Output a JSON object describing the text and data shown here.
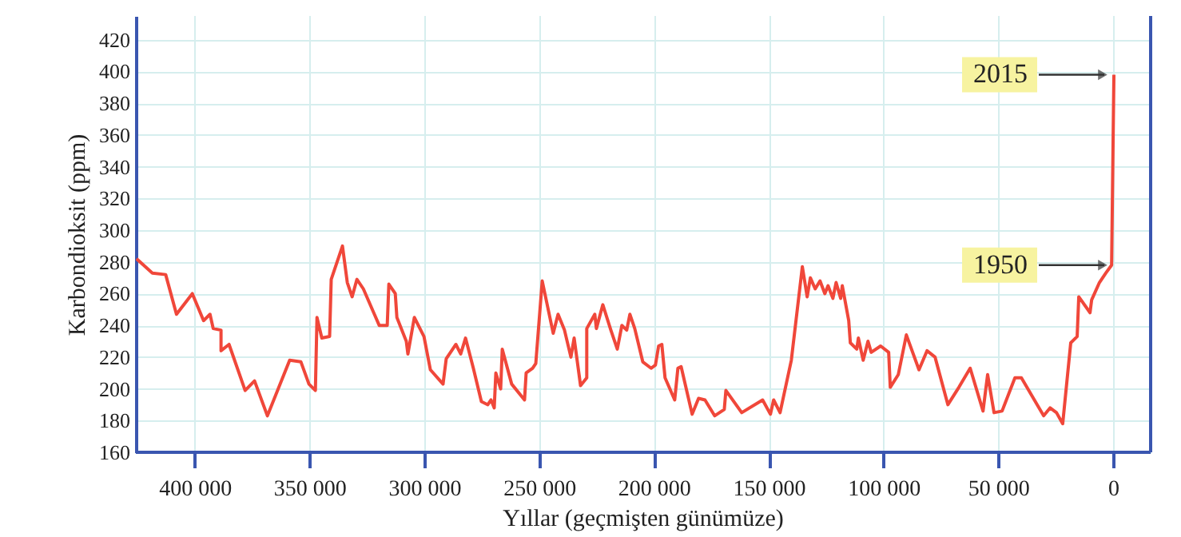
{
  "chart_data": {
    "type": "line",
    "xlabel": "Yıllar (geçmişten günümüze)",
    "ylabel": "Karbondioksit (ppm)",
    "x": [
      425700,
      418800,
      413000,
      408300,
      401400,
      396500,
      393700,
      392300,
      388900,
      388900,
      385400,
      378400,
      374300,
      368700,
      359000,
      354100,
      350600,
      347800,
      347100,
      345000,
      341600,
      340900,
      336000,
      333900,
      331800,
      329700,
      326900,
      322100,
      320000,
      316500,
      315800,
      313000,
      312300,
      308200,
      307500,
      304700,
      300500,
      297700,
      292200,
      290800,
      286600,
      284500,
      282400,
      279000,
      275500,
      272700,
      271300,
      269900,
      269200,
      267100,
      266400,
      262300,
      256700,
      256000,
      253200,
      251800,
      249000,
      244200,
      242100,
      239300,
      236500,
      235100,
      232300,
      229600,
      229600,
      226100,
      225400,
      222600,
      219100,
      216300,
      214300,
      212200,
      210800,
      208700,
      205200,
      201600,
      199700,
      198300,
      196900,
      195500,
      191300,
      189900,
      188500,
      183700,
      180900,
      178100,
      173900,
      169700,
      169000,
      162100,
      153000,
      149600,
      148200,
      145400,
      140500,
      135700,
      133600,
      132200,
      130100,
      128000,
      125900,
      124500,
      122400,
      121000,
      119000,
      118300,
      115500,
      114800,
      112000,
      111300,
      109200,
      107100,
      105700,
      101600,
      98100,
      97400,
      93900,
      90400,
      84900,
      81400,
      77900,
      72300,
      67500,
      62600,
      57000,
      55000,
      52200,
      48700,
      43100,
      40300,
      30600,
      27800,
      25000,
      22300,
      18800,
      16000,
      15300,
      10400,
      9700,
      6300,
      3500,
      1000,
      0
    ],
    "series": [
      {
        "color": "#f0473a",
        "values": [
          282,
          273,
          272,
          247,
          260,
          243,
          247,
          238,
          237,
          224,
          228,
          199,
          205,
          183,
          218,
          217,
          203,
          199,
          245,
          232,
          233,
          269,
          290,
          267,
          258,
          269,
          263,
          247,
          240,
          240,
          266,
          260,
          245,
          230,
          222,
          245,
          233,
          212,
          203,
          219,
          228,
          222,
          232,
          213,
          192,
          190,
          193,
          188,
          210,
          200,
          225,
          203,
          193,
          210,
          213,
          216,
          268,
          235,
          247,
          237,
          220,
          232,
          202,
          207,
          238,
          247,
          238,
          253,
          237,
          225,
          240,
          237,
          247,
          238,
          217,
          213,
          215,
          227,
          228,
          207,
          193,
          213,
          214,
          184,
          194,
          193,
          183,
          187,
          199,
          185,
          193,
          184,
          193,
          185,
          218,
          277,
          258,
          270,
          263,
          268,
          260,
          265,
          257,
          267,
          257,
          265,
          243,
          229,
          225,
          232,
          218,
          230,
          223,
          227,
          223,
          201,
          209,
          234,
          212,
          224,
          220,
          190,
          201,
          213,
          186,
          209,
          185,
          186,
          207,
          207,
          183,
          188,
          185,
          178,
          229,
          233,
          258,
          248,
          256,
          267,
          273,
          278,
          398
        ]
      }
    ],
    "xlim": [
      426000,
      -16000
    ],
    "xticks": [
      {
        "value": 400000,
        "label": "400 000"
      },
      {
        "value": 350000,
        "label": "350 000"
      },
      {
        "value": 300000,
        "label": "300 000"
      },
      {
        "value": 250000,
        "label": "250 000"
      },
      {
        "value": 200000,
        "label": "200 000"
      },
      {
        "value": 150000,
        "label": "150 000"
      },
      {
        "value": 100000,
        "label": "100 000"
      },
      {
        "value": 50000,
        "label": "50 000"
      },
      0
    ],
    "ylim": [
      160,
      435
    ],
    "yticks": [
      160,
      180,
      200,
      220,
      240,
      260,
      280,
      300,
      320,
      340,
      360,
      380,
      400,
      420
    ],
    "grid": true,
    "marker": "none",
    "line_style": "solid",
    "annotations": [
      {
        "text": "2015",
        "x": 0,
        "y": 398
      },
      {
        "text": "1950",
        "x": 0,
        "y": 278
      }
    ]
  }
}
